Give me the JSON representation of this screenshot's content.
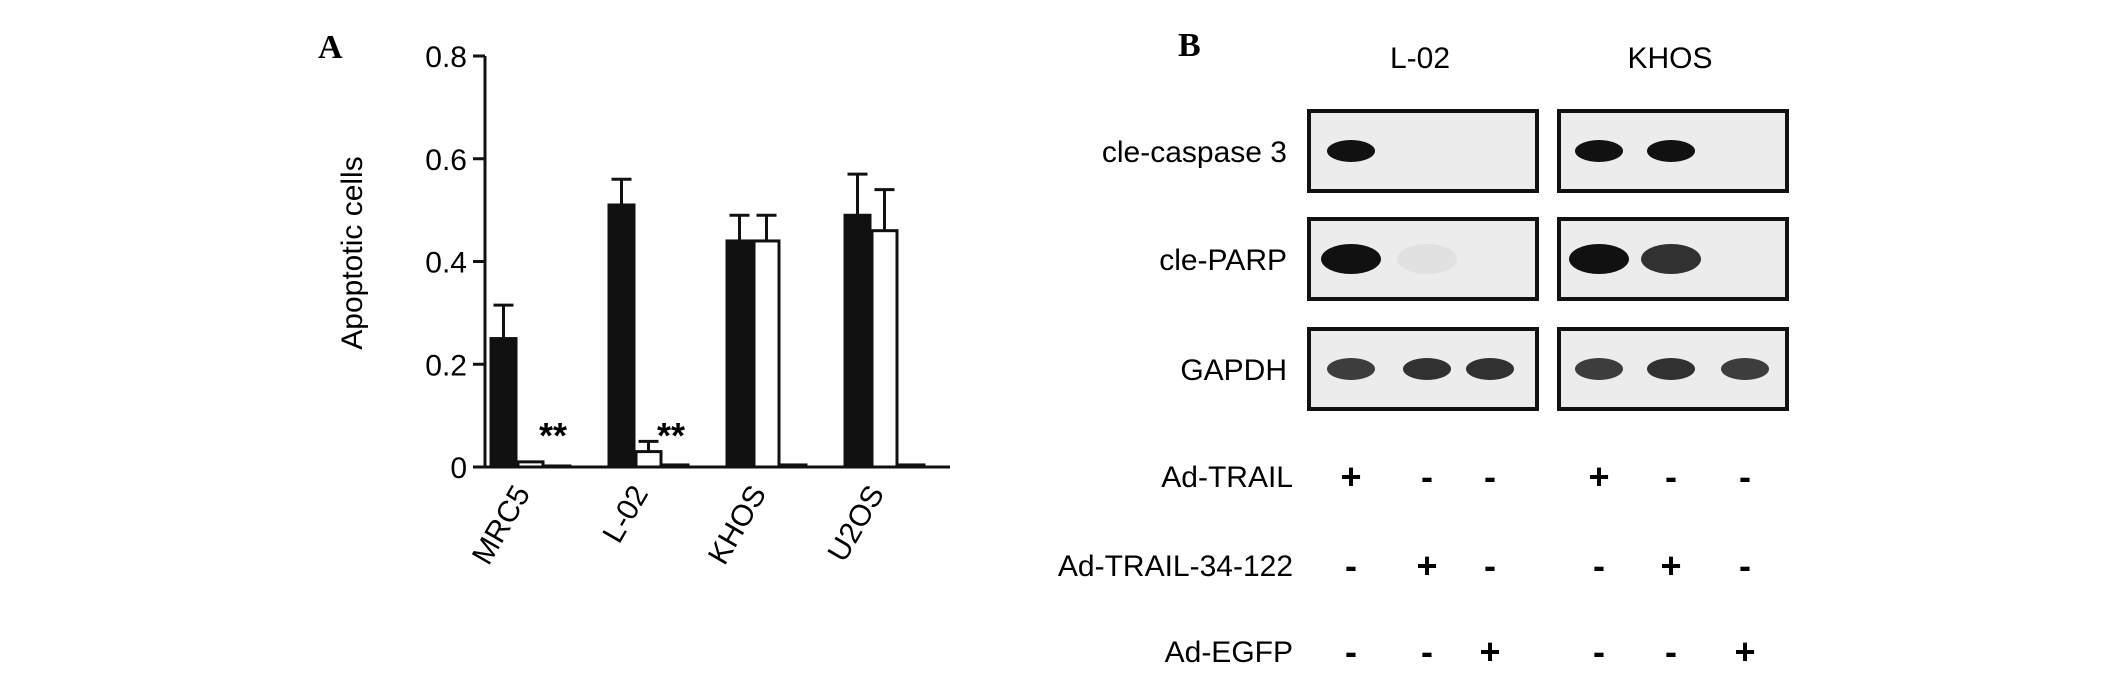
{
  "chart_data": [
    {
      "type": "bar",
      "panel_label": "A",
      "ylabel": "Apoptotic cells",
      "xlabel": "",
      "ylim": [
        0,
        0.8
      ],
      "yticks": [
        "0",
        "0.2",
        "0.4",
        "0.6",
        "0.8"
      ],
      "categories": [
        "MRC5",
        "L-02",
        "KHOS",
        "U2OS"
      ],
      "series": [
        {
          "fill": "#111111",
          "values": [
            0.25,
            0.51,
            0.44,
            0.49
          ],
          "errors": [
            0.065,
            0.05,
            0.05,
            0.08
          ]
        },
        {
          "fill": "#ffffff",
          "values": [
            0.01,
            0.03,
            0.44,
            0.46
          ],
          "errors": [
            0.0,
            0.02,
            0.05,
            0.08
          ]
        },
        {
          "fill": "#ffffff",
          "values": [
            0.002,
            0.004,
            0.004,
            0.004
          ],
          "errors": [
            0,
            0,
            0,
            0
          ]
        }
      ],
      "annotations": [
        {
          "text": "**",
          "category_index": 0
        },
        {
          "text": "**",
          "category_index": 1
        }
      ],
      "grid": false
    },
    {
      "type": "table",
      "panel_label": "B",
      "cell_lines": [
        "L-02",
        "KHOS"
      ],
      "proteins": [
        "cle-caspase 3",
        "cle-PARP",
        "GAPDH"
      ],
      "treatments": [
        "Ad-TRAIL",
        "Ad-TRAIL-34-122",
        "Ad-EGFP"
      ],
      "treatment_signs": [
        [
          "+",
          "-",
          "-"
        ],
        [
          "-",
          "+",
          "-"
        ],
        [
          "-",
          "-",
          "+"
        ]
      ],
      "band_intensity": {
        "L-02": [
          [
            1.0,
            0.0,
            0.0
          ],
          [
            1.0,
            0.05,
            0.0
          ],
          [
            0.8,
            0.85,
            0.85
          ]
        ],
        "KHOS": [
          [
            1.0,
            1.0,
            0.0
          ],
          [
            1.0,
            0.85,
            0.0
          ],
          [
            0.8,
            0.85,
            0.8
          ]
        ]
      }
    }
  ]
}
